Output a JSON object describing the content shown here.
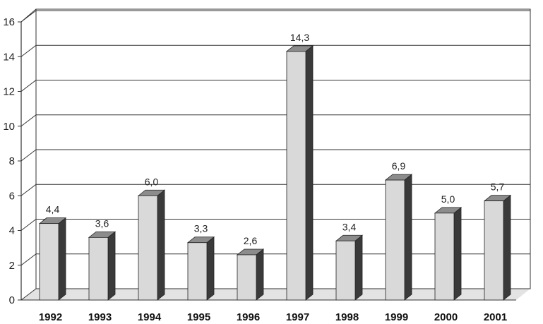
{
  "chart_data": {
    "type": "bar",
    "categories": [
      "1992",
      "1993",
      "1994",
      "1995",
      "1996",
      "1997",
      "1998",
      "1999",
      "2000",
      "2001"
    ],
    "values": [
      4.4,
      3.6,
      6.0,
      3.3,
      2.6,
      14.3,
      3.4,
      6.9,
      5.0,
      5.7
    ],
    "value_labels": [
      "4,4",
      "3,6",
      "6,0",
      "3,3",
      "2,6",
      "14,3",
      "3,4",
      "6,9",
      "5,0",
      "5,7"
    ],
    "yticks": [
      0,
      2,
      4,
      6,
      8,
      10,
      12,
      14,
      16
    ],
    "ylim": [
      0,
      16
    ],
    "title": "",
    "xlabel": "",
    "ylabel": "",
    "grid": true,
    "style": "3d-bar",
    "colors": {
      "bar_front": "#d9d9d9",
      "bar_top": "#8c8c8c",
      "bar_side": "#3a3a3a",
      "floor": "#e3e3e3"
    }
  }
}
